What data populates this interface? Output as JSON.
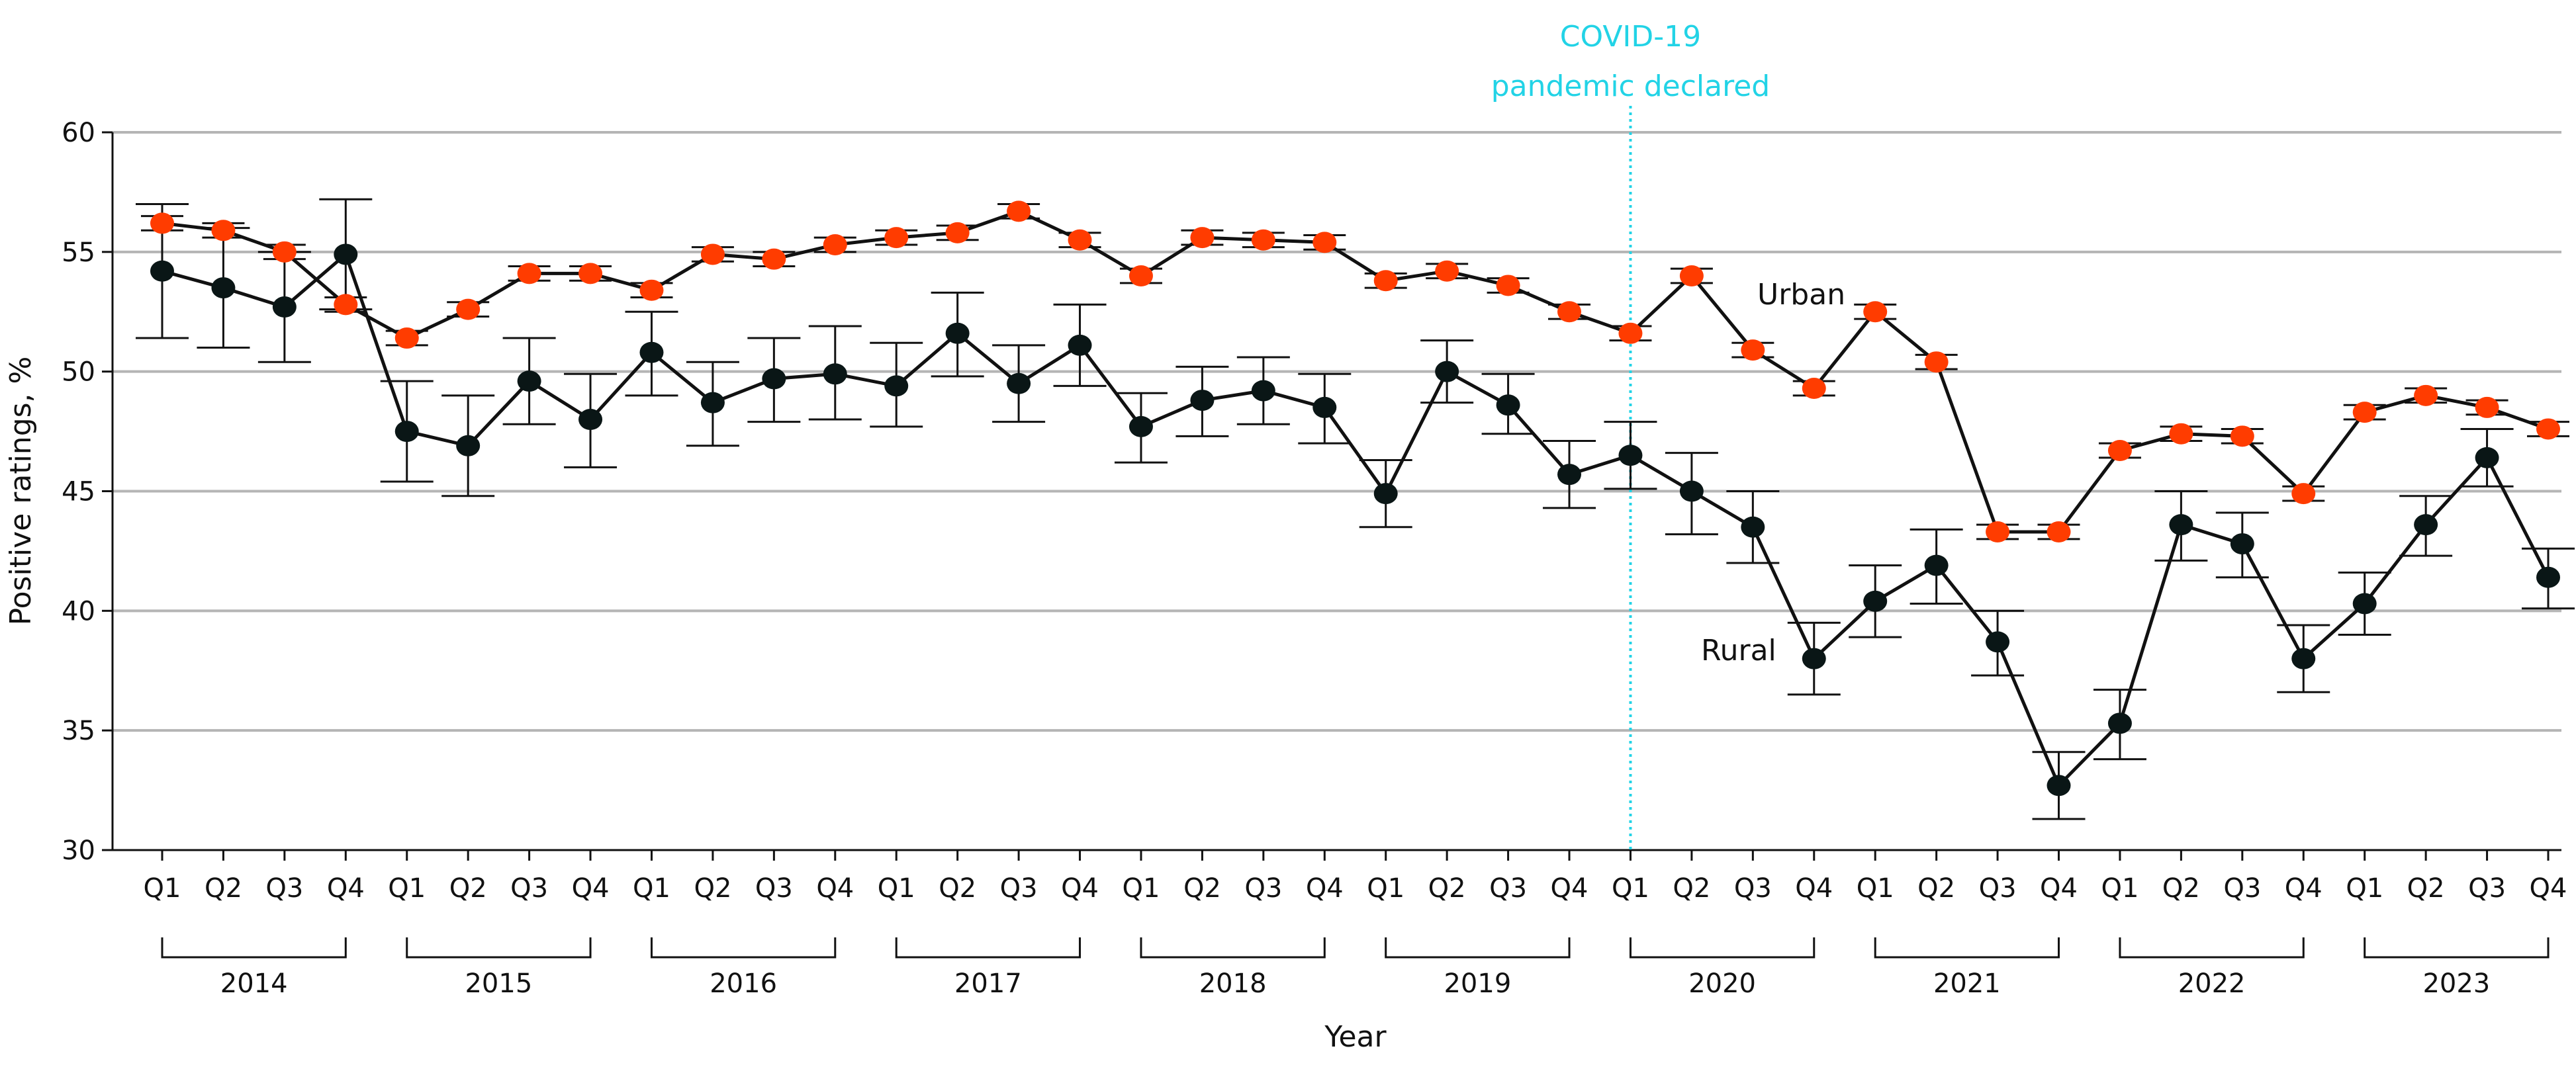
{
  "chart_data": {
    "type": "line",
    "title": "",
    "xlabel": "Year",
    "ylabel": "Positive ratings, %",
    "ylim": [
      30,
      60
    ],
    "yticks": [
      30,
      35,
      40,
      45,
      50,
      55,
      60
    ],
    "grid": "horizontal",
    "quarters": [
      "Q1",
      "Q2",
      "Q3",
      "Q4"
    ],
    "years": [
      "2014",
      "2015",
      "2016",
      "2017",
      "2018",
      "2019",
      "2020",
      "2021",
      "2022",
      "2023"
    ],
    "annotation": {
      "lines": [
        "COVID-19",
        "pandemic declared"
      ],
      "at_year": "2020",
      "at_quarter": "Q1",
      "color": "#22d3e6"
    },
    "series": [
      {
        "name": "Urban",
        "color": "#ff3c00",
        "values": [
          56.2,
          55.9,
          55.0,
          52.8,
          51.4,
          52.6,
          54.1,
          54.1,
          53.4,
          54.9,
          54.7,
          55.3,
          55.6,
          55.8,
          56.7,
          55.5,
          54.0,
          55.6,
          55.5,
          55.4,
          53.8,
          54.2,
          53.6,
          52.5,
          51.6,
          54.0,
          50.9,
          49.3,
          52.5,
          50.4,
          43.3,
          43.3,
          46.7,
          47.4,
          47.3,
          44.9,
          48.3,
          49.0,
          48.5,
          47.6
        ],
        "ci_halfwidth": 0.3
      },
      {
        "name": "Rural",
        "color": "#0a1616",
        "values": [
          54.2,
          53.5,
          52.7,
          54.9,
          47.5,
          46.9,
          49.6,
          48.0,
          50.8,
          48.7,
          49.7,
          49.9,
          49.4,
          51.6,
          49.5,
          51.1,
          47.7,
          48.8,
          49.2,
          48.5,
          44.9,
          50.0,
          48.6,
          45.7,
          46.5,
          45.0,
          43.5,
          38.0,
          40.4,
          41.9,
          38.7,
          32.7,
          35.3,
          43.6,
          42.8,
          38.0,
          40.3,
          43.6,
          46.4,
          41.4
        ],
        "lower": [
          51.4,
          51.0,
          50.4,
          52.6,
          45.4,
          44.8,
          47.8,
          46.0,
          49.0,
          46.9,
          47.9,
          48.0,
          47.7,
          49.8,
          47.9,
          49.4,
          46.2,
          47.3,
          47.8,
          47.0,
          43.5,
          48.7,
          47.4,
          44.3,
          45.1,
          43.2,
          42.0,
          36.5,
          38.9,
          40.3,
          37.3,
          31.3,
          33.8,
          42.1,
          41.4,
          36.6,
          39.0,
          42.3,
          45.2,
          40.1
        ],
        "upper": [
          57.0,
          56.0,
          55.0,
          57.2,
          49.6,
          49.0,
          51.4,
          49.9,
          52.5,
          50.4,
          51.4,
          51.9,
          51.2,
          53.3,
          51.1,
          52.8,
          49.1,
          50.2,
          50.6,
          49.9,
          46.3,
          51.3,
          49.9,
          47.1,
          47.9,
          46.6,
          45.0,
          39.5,
          41.9,
          43.4,
          40.0,
          34.1,
          36.7,
          45.0,
          44.1,
          39.4,
          41.6,
          44.8,
          47.6,
          42.6
        ]
      }
    ]
  }
}
